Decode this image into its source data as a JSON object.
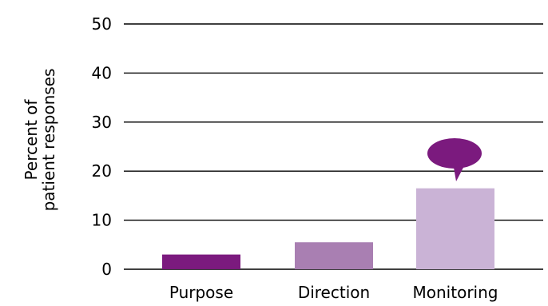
{
  "chart_data": {
    "type": "bar",
    "categories": [
      "Purpose",
      "Direction",
      "Monitoring"
    ],
    "values": [
      3,
      5.5,
      16.5
    ],
    "ylabel_lines": [
      "Percent of",
      "patient responses"
    ],
    "yticks": [
      0,
      10,
      20,
      30,
      40,
      50
    ],
    "ylim": [
      0,
      50
    ],
    "grid": true,
    "legend": "none",
    "bar_colors": [
      "#7b1a7e",
      "#a97fb2",
      "#cab3d6"
    ],
    "callout": {
      "category": "Monitoring",
      "color": "#7b1a7e",
      "shape": "speech-bubble-icon"
    }
  }
}
